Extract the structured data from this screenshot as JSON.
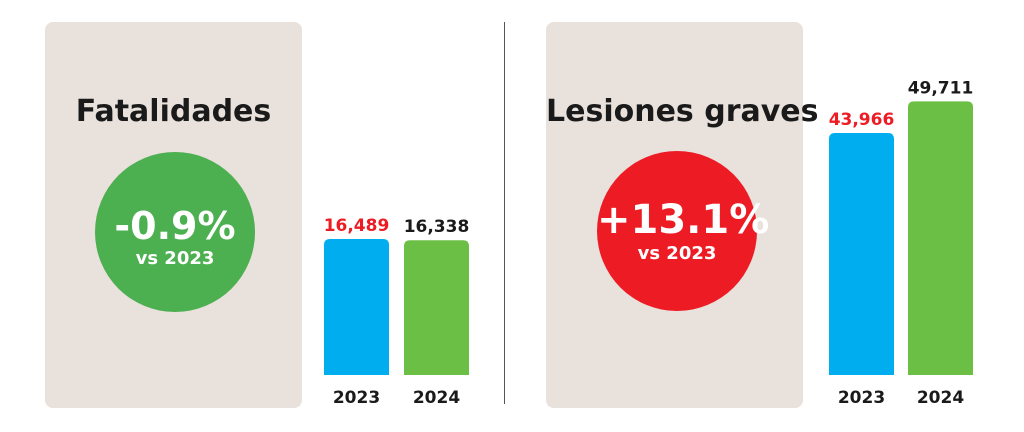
{
  "colors": {
    "panel_bg": "#e8e1dc",
    "bar_2023": "#00aeef",
    "bar_2024": "#6cbf45",
    "badge_down": "#4caf50",
    "badge_up": "#ed1c24",
    "label_2023": "#ed1c24",
    "label_2024": "#1a1a1a"
  },
  "left": {
    "title": "Fatalidades",
    "change": "-0.9%",
    "change_sub": "vs 2023"
  },
  "right": {
    "title": "Lesiones graves",
    "change": "+13.1%",
    "change_sub": "vs 2023"
  },
  "chart_data": [
    {
      "type": "bar",
      "title": "Fatalidades",
      "categories": [
        "2023",
        "2024"
      ],
      "values": [
        16489,
        16338
      ],
      "value_labels": [
        "16,489",
        "16,338"
      ],
      "ylim": [
        0,
        40000
      ],
      "grid": false
    },
    {
      "type": "bar",
      "title": "Lesiones graves",
      "categories": [
        "2023",
        "2024"
      ],
      "values": [
        43966,
        49711
      ],
      "value_labels": [
        "43,966",
        "49,711"
      ],
      "ylim": [
        0,
        50000
      ],
      "grid": false
    }
  ]
}
